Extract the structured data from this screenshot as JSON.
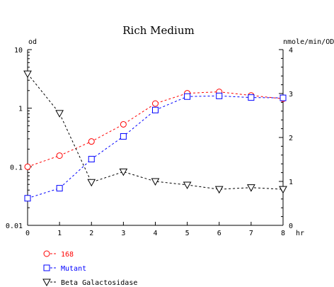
{
  "chart_data": {
    "type": "line",
    "title": "Rich Medium",
    "xlabel": "hr",
    "ylabel": "od",
    "y2label": "nmole/min/OD",
    "x": [
      0,
      1,
      2,
      3,
      4,
      5,
      6,
      7,
      8
    ],
    "xlim": [
      0,
      8
    ],
    "ylim": [
      0.01,
      10
    ],
    "yscale": "log",
    "y2lim": [
      0,
      4
    ],
    "yticks": [
      "10",
      "1",
      "0.1",
      "0.01"
    ],
    "y2ticks": [
      "4",
      "3",
      "2",
      "1",
      "0"
    ],
    "xticks": [
      "0",
      "1",
      "2",
      "3",
      "4",
      "5",
      "6",
      "7",
      "8"
    ],
    "grid": false,
    "legend_position": "bottom-left",
    "series": [
      {
        "name": "168",
        "axis": "left",
        "color": "#ff0000",
        "marker": "circle",
        "values": [
          0.1,
          0.155,
          0.27,
          0.53,
          1.2,
          1.8,
          1.9,
          1.65,
          1.45
        ]
      },
      {
        "name": "Mutant",
        "axis": "left",
        "color": "#0000ff",
        "marker": "square",
        "values": [
          0.029,
          0.043,
          0.135,
          0.33,
          0.93,
          1.58,
          1.62,
          1.52,
          1.5
        ]
      },
      {
        "name": "Beta Galactosidase",
        "axis": "right",
        "color": "#000000",
        "marker": "triangle-down",
        "values": [
          3.45,
          2.55,
          0.98,
          1.22,
          1.0,
          0.92,
          0.82,
          0.86,
          0.82
        ]
      }
    ]
  }
}
